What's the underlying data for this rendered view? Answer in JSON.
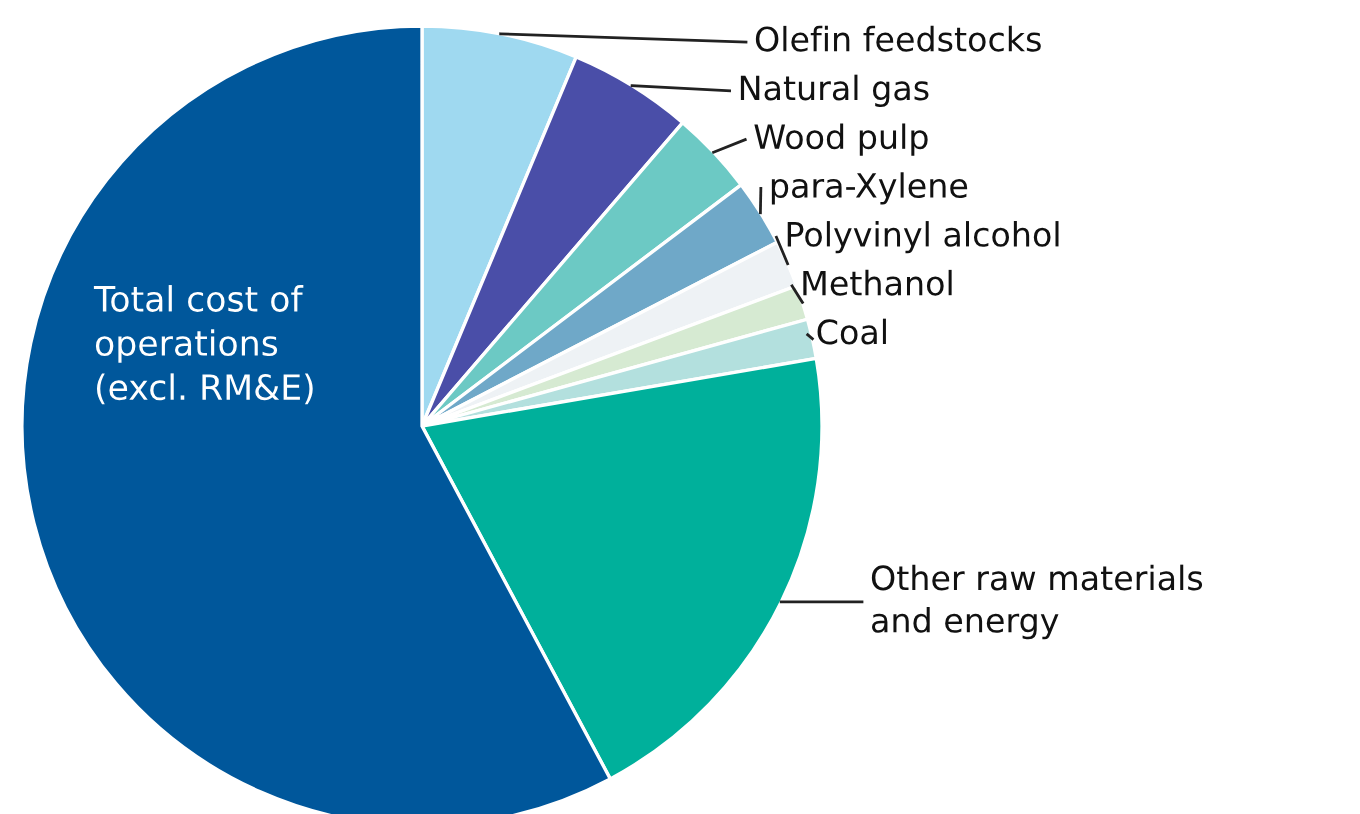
{
  "chart_data": {
    "type": "pie",
    "categories": [
      "Olefin feedstocks",
      "Natural gas",
      "Wood pulp",
      "para-Xylene",
      "Polyvinyl alcohol",
      "Methanol",
      "Coal",
      "Other raw materials\nand energy",
      "Total cost of\noperations\n(excl. RM&E)"
    ],
    "values": [
      6.3,
      5.0,
      3.4,
      2.7,
      1.9,
      1.4,
      1.6,
      19.9,
      57.8
    ],
    "colors": [
      "#9fd9f0",
      "#4a4ea8",
      "#6cc9c4",
      "#6fa8c8",
      "#eef2f5",
      "#d6ead2",
      "#b3e0de",
      "#00b09b",
      "#00579b"
    ],
    "legend": false
  }
}
